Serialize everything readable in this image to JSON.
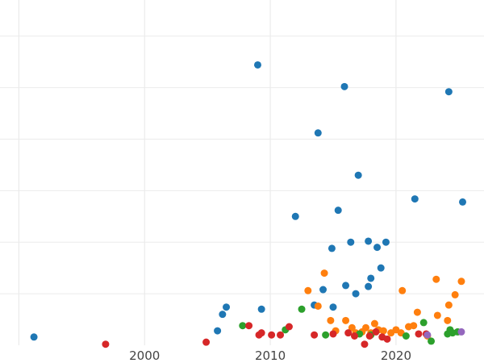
{
  "chart_data": {
    "type": "scatter",
    "title": "",
    "xlabel": "",
    "ylabel": "",
    "xlim": [
      1988.5,
      2027
    ],
    "ylim": [
      0,
      335
    ],
    "grid": true,
    "legend": "none",
    "x_ticks": [
      {
        "value": 2000,
        "label": "2000"
      },
      {
        "value": 2010,
        "label": "2010"
      },
      {
        "value": 2020,
        "label": "2020"
      }
    ],
    "y_gridlines": [
      50,
      100,
      150,
      200,
      250,
      300
    ],
    "colors": {
      "background": "#ffffff",
      "grid": "#ebebeb",
      "tick_text": "#444444"
    },
    "series": [
      {
        "color": "#1f77b4",
        "points": [
          {
            "x": 1991.2,
            "y": 8
          },
          {
            "x": 2005.8,
            "y": 14
          },
          {
            "x": 2006.2,
            "y": 30
          },
          {
            "x": 2006.5,
            "y": 37
          },
          {
            "x": 2009.0,
            "y": 272
          },
          {
            "x": 2009.3,
            "y": 35
          },
          {
            "x": 2012.0,
            "y": 125
          },
          {
            "x": 2013.5,
            "y": 39
          },
          {
            "x": 2013.8,
            "y": 206
          },
          {
            "x": 2014.2,
            "y": 54
          },
          {
            "x": 2014.9,
            "y": 94
          },
          {
            "x": 2015.0,
            "y": 37
          },
          {
            "x": 2015.4,
            "y": 131
          },
          {
            "x": 2015.9,
            "y": 251
          },
          {
            "x": 2016.0,
            "y": 58
          },
          {
            "x": 2016.4,
            "y": 100
          },
          {
            "x": 2016.8,
            "y": 50
          },
          {
            "x": 2017.0,
            "y": 165
          },
          {
            "x": 2017.8,
            "y": 57
          },
          {
            "x": 2017.8,
            "y": 101
          },
          {
            "x": 2018.0,
            "y": 65
          },
          {
            "x": 2018.5,
            "y": 95
          },
          {
            "x": 2018.8,
            "y": 75
          },
          {
            "x": 2019.2,
            "y": 100
          },
          {
            "x": 2021.5,
            "y": 142
          },
          {
            "x": 2024.2,
            "y": 246
          },
          {
            "x": 2025.3,
            "y": 139
          }
        ]
      },
      {
        "color": "#ff7f0e",
        "points": [
          {
            "x": 2013.0,
            "y": 53
          },
          {
            "x": 2013.8,
            "y": 38
          },
          {
            "x": 2014.3,
            "y": 70
          },
          {
            "x": 2014.8,
            "y": 24
          },
          {
            "x": 2015.2,
            "y": 14
          },
          {
            "x": 2016.0,
            "y": 24
          },
          {
            "x": 2016.5,
            "y": 17
          },
          {
            "x": 2016.8,
            "y": 12
          },
          {
            "x": 2017.3,
            "y": 13
          },
          {
            "x": 2017.6,
            "y": 17
          },
          {
            "x": 2018.0,
            "y": 12
          },
          {
            "x": 2018.3,
            "y": 21
          },
          {
            "x": 2018.6,
            "y": 15
          },
          {
            "x": 2019.0,
            "y": 14
          },
          {
            "x": 2019.6,
            "y": 12
          },
          {
            "x": 2020.0,
            "y": 15
          },
          {
            "x": 2020.4,
            "y": 12
          },
          {
            "x": 2020.5,
            "y": 53
          },
          {
            "x": 2021.0,
            "y": 18
          },
          {
            "x": 2021.4,
            "y": 19
          },
          {
            "x": 2021.7,
            "y": 32
          },
          {
            "x": 2022.5,
            "y": 9
          },
          {
            "x": 2023.2,
            "y": 64
          },
          {
            "x": 2023.3,
            "y": 29
          },
          {
            "x": 2024.1,
            "y": 24
          },
          {
            "x": 2024.2,
            "y": 39
          },
          {
            "x": 2024.7,
            "y": 49
          },
          {
            "x": 2025.2,
            "y": 62
          }
        ]
      },
      {
        "color": "#2ca02c",
        "points": [
          {
            "x": 2007.8,
            "y": 19
          },
          {
            "x": 2011.2,
            "y": 15
          },
          {
            "x": 2012.5,
            "y": 35
          },
          {
            "x": 2014.4,
            "y": 10
          },
          {
            "x": 2017.1,
            "y": 11
          },
          {
            "x": 2018.0,
            "y": 10
          },
          {
            "x": 2020.8,
            "y": 9
          },
          {
            "x": 2022.2,
            "y": 22
          },
          {
            "x": 2022.8,
            "y": 4
          },
          {
            "x": 2024.1,
            "y": 11
          },
          {
            "x": 2024.3,
            "y": 15
          },
          {
            "x": 2024.5,
            "y": 12
          },
          {
            "x": 2024.9,
            "y": 13
          }
        ]
      },
      {
        "color": "#d62728",
        "points": [
          {
            "x": 1996.9,
            "y": 1
          },
          {
            "x": 2004.9,
            "y": 3
          },
          {
            "x": 2008.3,
            "y": 19
          },
          {
            "x": 2009.1,
            "y": 10
          },
          {
            "x": 2009.3,
            "y": 12
          },
          {
            "x": 2010.1,
            "y": 10
          },
          {
            "x": 2010.8,
            "y": 10
          },
          {
            "x": 2011.5,
            "y": 18
          },
          {
            "x": 2013.5,
            "y": 10
          },
          {
            "x": 2015.0,
            "y": 11
          },
          {
            "x": 2016.2,
            "y": 12
          },
          {
            "x": 2016.7,
            "y": 9
          },
          {
            "x": 2017.5,
            "y": 1
          },
          {
            "x": 2017.9,
            "y": 9
          },
          {
            "x": 2018.4,
            "y": 13
          },
          {
            "x": 2018.9,
            "y": 8
          },
          {
            "x": 2019.3,
            "y": 6
          },
          {
            "x": 2021.8,
            "y": 11
          },
          {
            "x": 2022.4,
            "y": 11
          }
        ]
      },
      {
        "color": "#9467bd",
        "points": [
          {
            "x": 2022.5,
            "y": 10
          },
          {
            "x": 2025.2,
            "y": 13
          }
        ]
      }
    ]
  }
}
